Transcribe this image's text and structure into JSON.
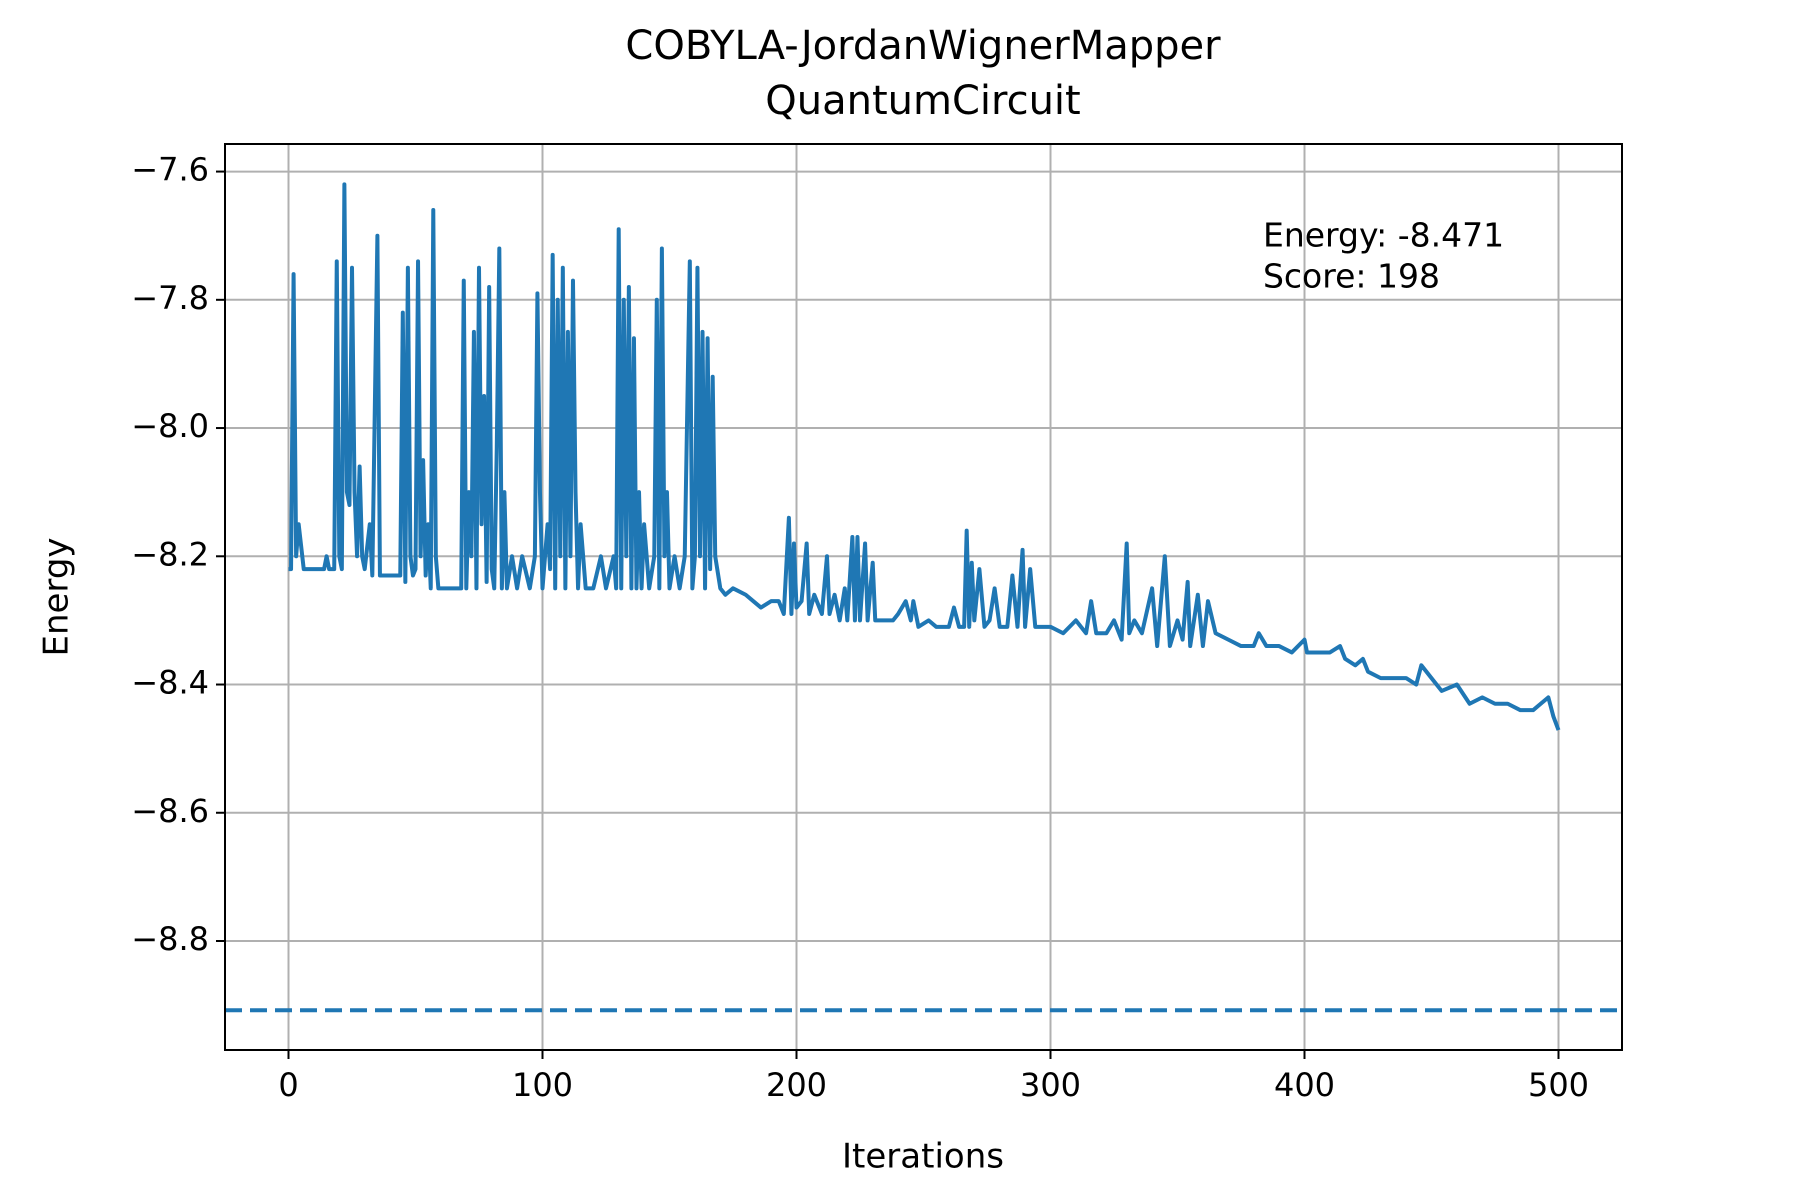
{
  "chart_data": {
    "type": "line",
    "title": [
      "COBYLA-JordanWignerMapper",
      "QuantumCircuit"
    ],
    "xlabel": "Iterations",
    "ylabel": "Energy",
    "annotations": [
      "Energy: -8.471",
      "Score: 198"
    ],
    "color": "#1f77b4",
    "x": [
      0,
      1,
      2,
      3,
      4,
      6,
      10,
      14,
      15,
      16,
      18,
      19,
      20,
      21,
      22,
      23,
      24,
      25,
      26,
      27,
      28,
      29,
      30,
      32,
      33,
      35,
      36,
      40,
      44,
      45,
      46,
      47,
      48,
      49,
      50,
      51,
      52,
      53,
      54,
      55,
      56,
      57,
      58,
      59,
      62,
      68,
      69,
      70,
      71,
      72,
      73,
      74,
      75,
      76,
      77,
      78,
      79,
      80,
      81,
      82,
      83,
      84,
      85,
      86,
      88,
      90,
      92,
      95,
      97,
      98,
      99,
      100,
      102,
      103,
      104,
      105,
      106,
      107,
      108,
      109,
      110,
      111,
      112,
      113,
      114,
      115,
      117,
      120,
      123,
      125,
      128,
      129,
      130,
      131,
      132,
      133,
      134,
      135,
      136,
      137,
      138,
      139,
      140,
      142,
      144,
      145,
      146,
      147,
      148,
      149,
      150,
      152,
      154,
      156,
      158,
      159,
      160,
      161,
      162,
      163,
      164,
      165,
      166,
      167,
      168,
      170,
      172,
      175,
      180,
      183,
      186,
      190,
      193,
      195,
      197,
      198,
      199,
      200,
      202,
      204,
      205,
      207,
      210,
      212,
      213,
      215,
      217,
      219,
      220,
      222,
      223,
      224,
      225,
      227,
      228,
      230,
      231,
      235,
      238,
      240,
      243,
      245,
      246,
      248,
      252,
      255,
      260,
      262,
      264,
      266,
      267,
      268,
      269,
      270,
      272,
      274,
      276,
      278,
      280,
      283,
      285,
      287,
      289,
      290,
      292,
      294,
      296,
      300,
      305,
      310,
      314,
      316,
      318,
      322,
      325,
      328,
      330,
      331,
      333,
      336,
      340,
      342,
      345,
      347,
      350,
      352,
      354,
      355,
      358,
      360,
      362,
      365,
      370,
      375,
      380,
      382,
      385,
      390,
      395,
      400,
      401,
      405,
      410,
      414,
      416,
      420,
      423,
      425,
      430,
      435,
      440,
      444,
      446,
      450,
      454,
      460,
      465,
      470,
      475,
      480,
      485,
      490,
      493,
      496,
      498,
      500
    ],
    "values": [
      -8.22,
      -8.22,
      -7.76,
      -8.2,
      -8.15,
      -8.22,
      -8.22,
      -8.22,
      -8.2,
      -8.22,
      -8.22,
      -7.74,
      -8.2,
      -8.22,
      -7.62,
      -8.1,
      -8.12,
      -7.75,
      -8.1,
      -8.2,
      -8.06,
      -8.2,
      -8.22,
      -8.15,
      -8.23,
      -7.7,
      -8.23,
      -8.23,
      -8.23,
      -7.82,
      -8.24,
      -7.75,
      -8.2,
      -8.23,
      -8.22,
      -7.74,
      -8.2,
      -8.05,
      -8.23,
      -8.15,
      -8.25,
      -7.66,
      -8.2,
      -8.25,
      -8.25,
      -8.25,
      -7.77,
      -8.25,
      -8.1,
      -8.2,
      -7.85,
      -8.25,
      -7.75,
      -8.15,
      -7.95,
      -8.24,
      -7.78,
      -8.22,
      -8.25,
      -8.03,
      -7.72,
      -8.25,
      -8.1,
      -8.25,
      -8.2,
      -8.25,
      -8.2,
      -8.25,
      -8.2,
      -7.79,
      -8.1,
      -8.25,
      -8.15,
      -8.22,
      -7.73,
      -8.25,
      -7.8,
      -8.2,
      -7.75,
      -8.25,
      -7.85,
      -8.2,
      -7.77,
      -8.1,
      -8.25,
      -8.15,
      -8.25,
      -8.25,
      -8.2,
      -8.25,
      -8.2,
      -8.25,
      -7.69,
      -8.25,
      -7.8,
      -8.2,
      -7.78,
      -8.25,
      -7.86,
      -8.25,
      -8.1,
      -8.25,
      -8.15,
      -8.25,
      -8.2,
      -7.8,
      -8.25,
      -7.72,
      -8.2,
      -8.1,
      -8.25,
      -8.2,
      -8.25,
      -8.2,
      -7.74,
      -8.25,
      -8.2,
      -7.75,
      -8.2,
      -7.85,
      -8.25,
      -7.86,
      -8.22,
      -7.92,
      -8.2,
      -8.25,
      -8.26,
      -8.25,
      -8.26,
      -8.27,
      -8.28,
      -8.27,
      -8.27,
      -8.29,
      -8.14,
      -8.29,
      -8.18,
      -8.28,
      -8.27,
      -8.18,
      -8.29,
      -8.26,
      -8.29,
      -8.2,
      -8.29,
      -8.26,
      -8.3,
      -8.25,
      -8.3,
      -8.17,
      -8.3,
      -8.17,
      -8.3,
      -8.18,
      -8.3,
      -8.21,
      -8.3,
      -8.3,
      -8.3,
      -8.29,
      -8.27,
      -8.3,
      -8.27,
      -8.31,
      -8.3,
      -8.31,
      -8.31,
      -8.28,
      -8.31,
      -8.31,
      -8.16,
      -8.31,
      -8.21,
      -8.3,
      -8.22,
      -8.31,
      -8.3,
      -8.25,
      -8.31,
      -8.31,
      -8.23,
      -8.31,
      -8.19,
      -8.31,
      -8.22,
      -8.31,
      -8.31,
      -8.31,
      -8.32,
      -8.3,
      -8.32,
      -8.27,
      -8.32,
      -8.32,
      -8.3,
      -8.33,
      -8.18,
      -8.32,
      -8.3,
      -8.32,
      -8.25,
      -8.34,
      -8.2,
      -8.34,
      -8.3,
      -8.33,
      -8.24,
      -8.34,
      -8.26,
      -8.34,
      -8.27,
      -8.32,
      -8.33,
      -8.34,
      -8.34,
      -8.32,
      -8.34,
      -8.34,
      -8.35,
      -8.33,
      -8.35,
      -8.35,
      -8.35,
      -8.34,
      -8.36,
      -8.37,
      -8.36,
      -8.38,
      -8.39,
      -8.39,
      -8.39,
      -8.4,
      -8.37,
      -8.39,
      -8.41,
      -8.4,
      -8.43,
      -8.42,
      -8.43,
      -8.43,
      -8.44,
      -8.44,
      -8.43,
      -8.42,
      -8.45,
      -8.471
    ],
    "hline": -8.908,
    "hline_style": "dashed",
    "xlim": [
      -25,
      525
    ],
    "xticks": [
      0,
      100,
      200,
      300,
      400,
      500
    ],
    "ylim": [
      -8.97,
      -7.557
    ],
    "yticks": [
      {
        "value": -7.6,
        "label": "−7.6"
      },
      {
        "value": -7.8,
        "label": "−7.8"
      },
      {
        "value": -8.0,
        "label": "−8.0"
      },
      {
        "value": -8.2,
        "label": "−8.2"
      },
      {
        "value": -8.4,
        "label": "−8.4"
      },
      {
        "value": -8.6,
        "label": "−8.6"
      },
      {
        "value": -8.8,
        "label": "−8.8"
      }
    ],
    "grid": true
  }
}
